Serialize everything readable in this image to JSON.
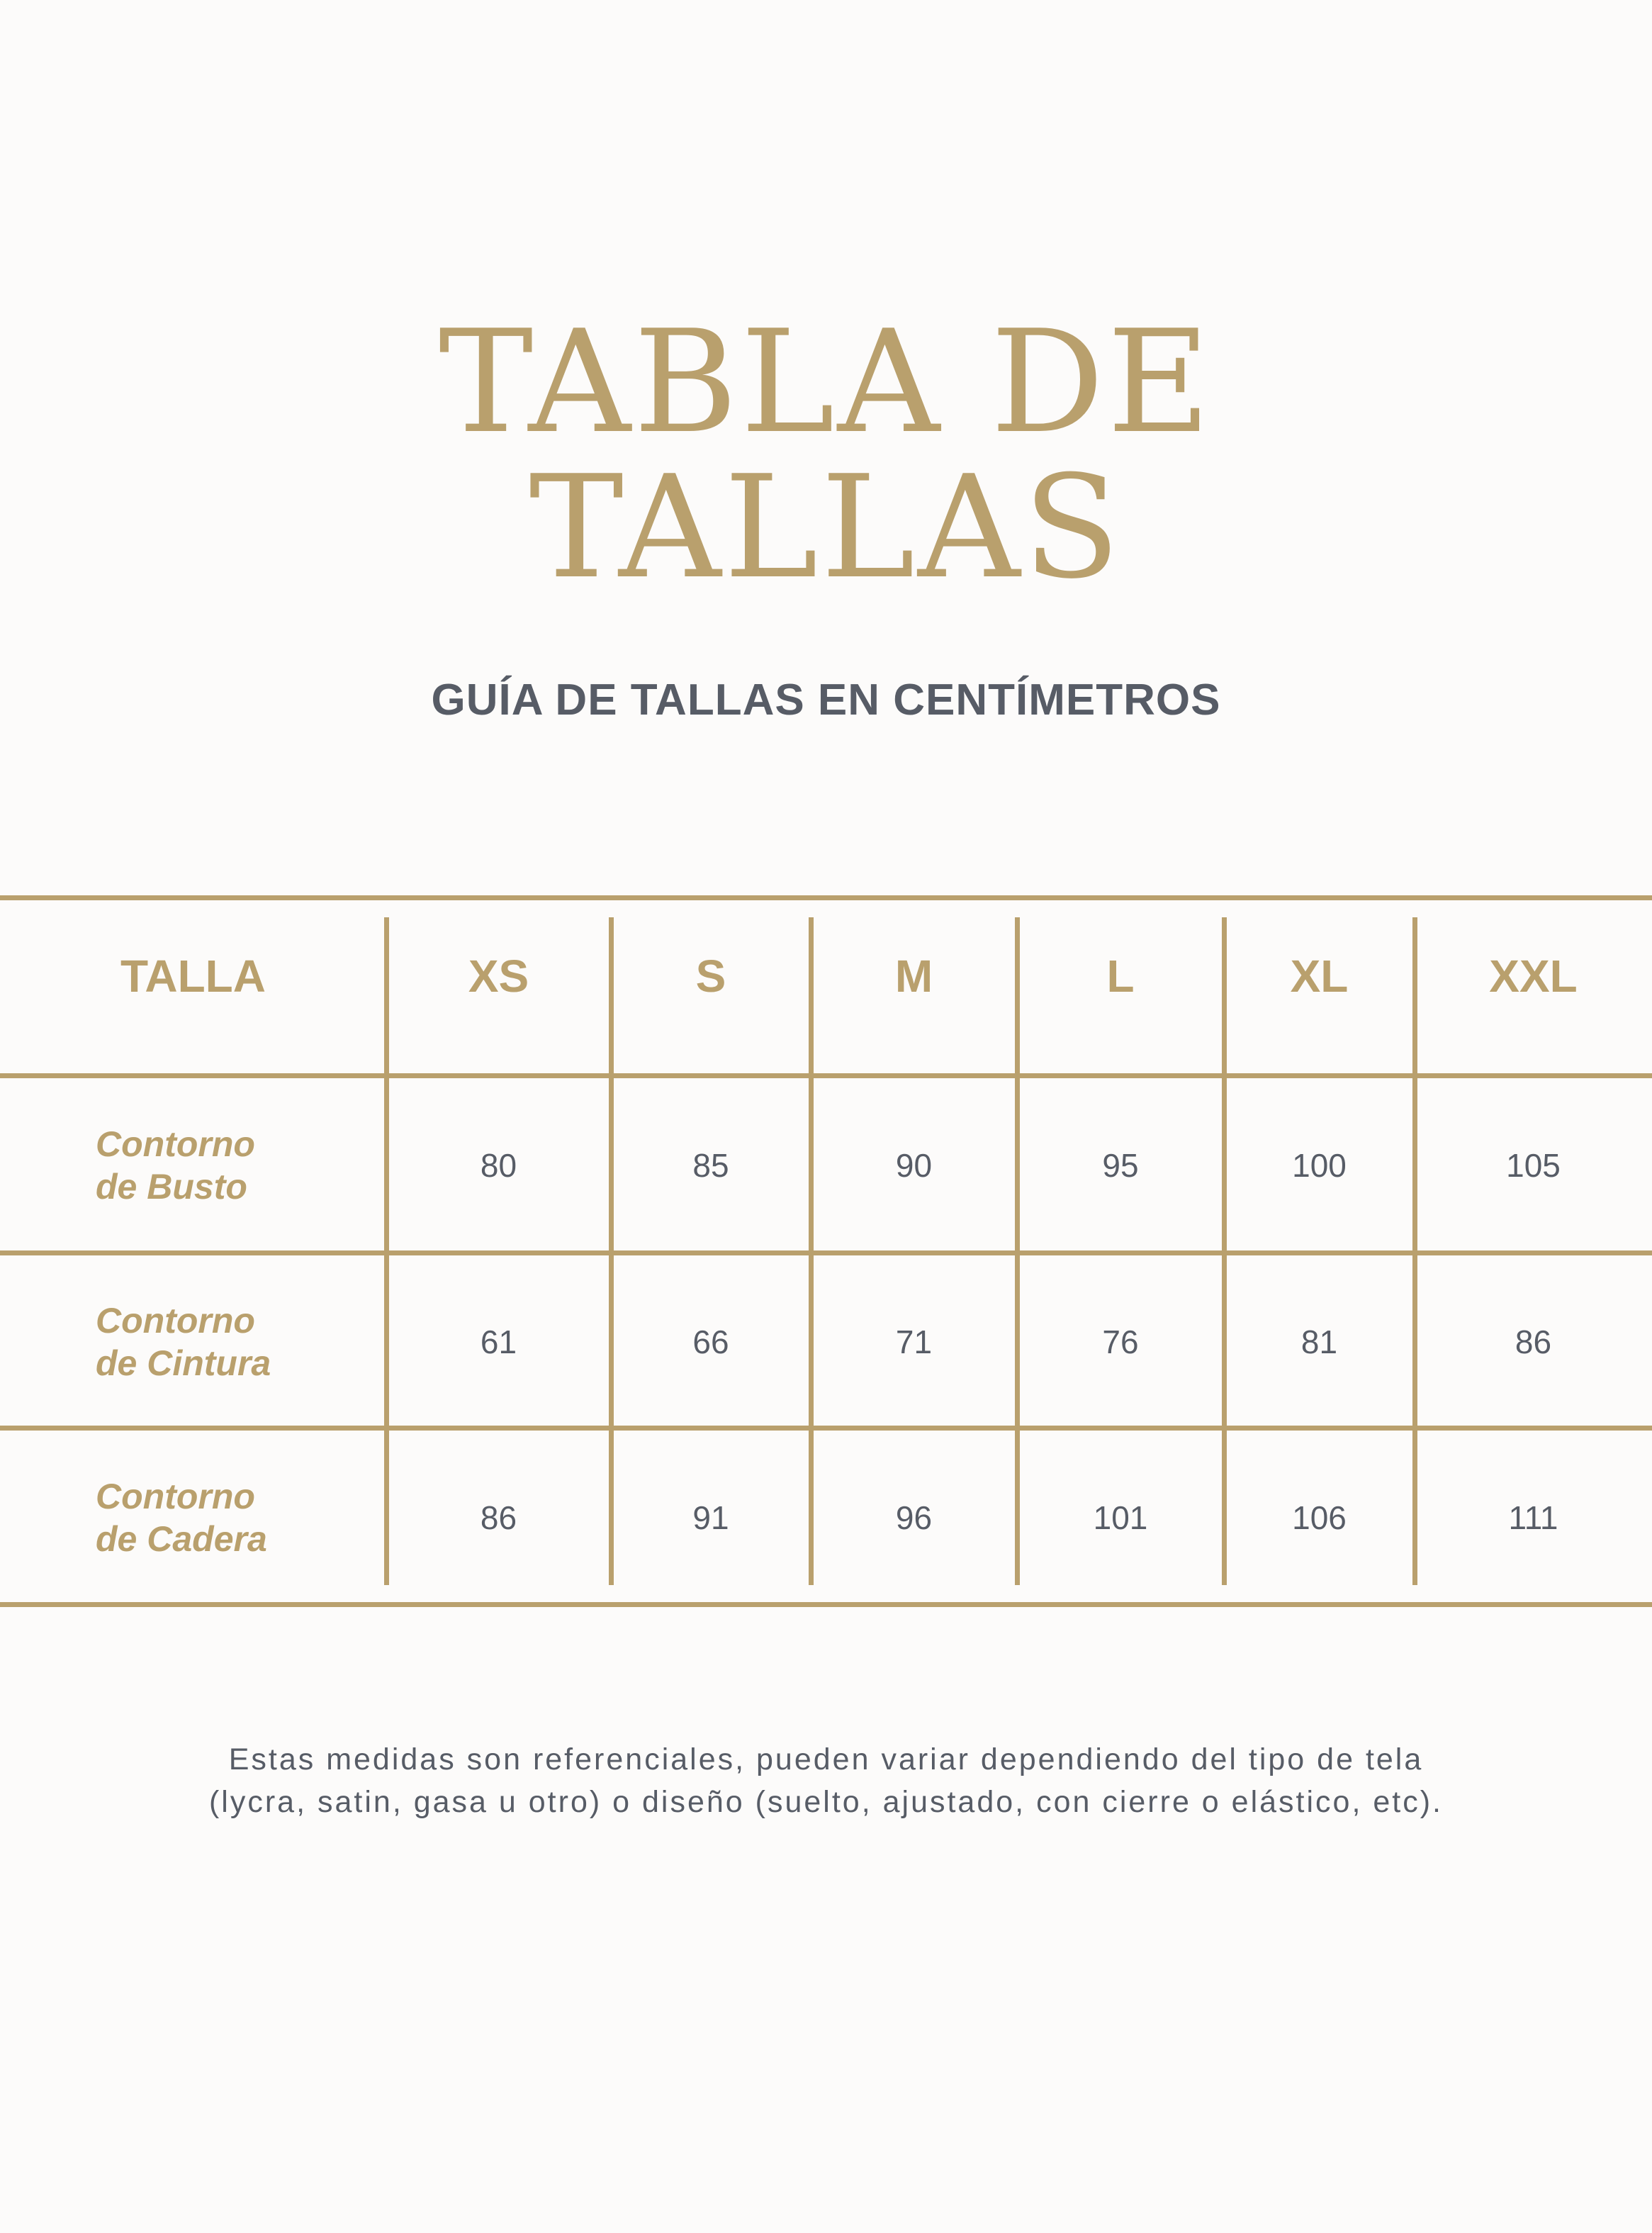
{
  "title": {
    "line1": "TABLA DE",
    "line2": "TALLAS"
  },
  "subtitle": "GUÍA DE TALLAS EN CENTÍMETROS",
  "table": {
    "header": [
      "TALLA",
      "XS",
      "S",
      "M",
      "L",
      "XL",
      "XXL"
    ],
    "rows": [
      {
        "label": "Contorno de Busto",
        "values": [
          "80",
          "85",
          "90",
          "95",
          "100",
          "105"
        ]
      },
      {
        "label": "Contorno de Cintura",
        "values": [
          "61",
          "66",
          "71",
          "76",
          "81",
          "86"
        ]
      },
      {
        "label": "Contorno de Cadera",
        "values": [
          "86",
          "91",
          "96",
          "101",
          "106",
          "111"
        ]
      }
    ]
  },
  "note": {
    "line1": "Estas medidas son referenciales, pueden variar dependiendo del tipo de tela",
    "line2": "(lycra, satin, gasa u otro) o diseño (suelto, ajustado, con cierre o elástico, etc)."
  },
  "colors": {
    "accent": "#b9a06d",
    "text": "#575c66",
    "background": "#fcfbfa"
  }
}
